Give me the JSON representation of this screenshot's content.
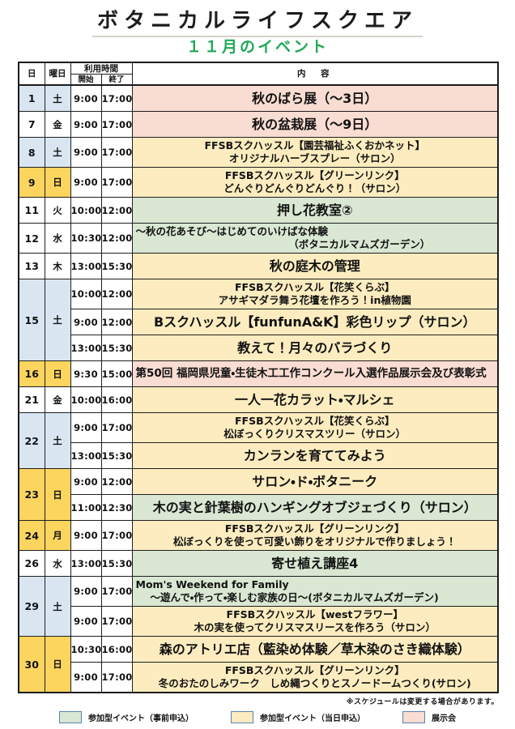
{
  "title": "ボタニカルライフスクエア",
  "subtitle": "１１月のイベント",
  "subtitle_color": "#21a857",
  "table": {
    "headers": {
      "day": "日",
      "weekday": "曜日",
      "time": "利用時間",
      "start": "開始",
      "end": "終了",
      "content": "内　容"
    },
    "rows": [
      {
        "day": "1",
        "weekday": "土",
        "day_type": "sat",
        "events": [
          {
            "start": "9:00",
            "end": "17:00",
            "category": "pink",
            "size": "lg",
            "layout": "center",
            "lines": [
              "秋のばら展（～3日）"
            ]
          }
        ]
      },
      {
        "day": "7",
        "weekday": "金",
        "day_type": "wk",
        "events": [
          {
            "start": "9:00",
            "end": "17:00",
            "category": "pink",
            "size": "lg",
            "layout": "center",
            "lines": [
              "秋の盆栽展（～9日）"
            ]
          }
        ]
      },
      {
        "day": "8",
        "weekday": "土",
        "day_type": "sat",
        "events": [
          {
            "start": "9:00",
            "end": "17:00",
            "category": "yellow",
            "size": "sm",
            "layout": "center",
            "lines": [
              "FFSBスクハッスル【園芸福祉ふくおかネット】",
              "オリジナルハーブスプレー（サロン）"
            ]
          }
        ]
      },
      {
        "day": "9",
        "weekday": "日",
        "day_type": "sun",
        "events": [
          {
            "start": "9:00",
            "end": "17:00",
            "category": "yellow",
            "size": "sm",
            "layout": "center",
            "lines": [
              "FFSBスクハッスル【グリーンリンク】",
              "どんぐりどんぐりどんぐり！（サロン）"
            ]
          }
        ]
      },
      {
        "day": "11",
        "weekday": "火",
        "day_type": "wk",
        "events": [
          {
            "start": "10:00",
            "end": "12:00",
            "category": "green",
            "size": "lg",
            "layout": "center",
            "lines": [
              "押し花教室②"
            ]
          }
        ]
      },
      {
        "day": "12",
        "weekday": "水",
        "day_type": "wk",
        "events": [
          {
            "start": "10:30",
            "end": "12:00",
            "category": "green",
            "size": "sm",
            "layout": "split",
            "lines": [
              "～秋の花あそび～はじめてのいけばな体験",
              "（ボタニカルマムズガーデン）"
            ]
          }
        ]
      },
      {
        "day": "13",
        "weekday": "木",
        "day_type": "wk",
        "events": [
          {
            "start": "13:00",
            "end": "15:30",
            "category": "yellow",
            "size": "lg",
            "layout": "center",
            "lines": [
              "秋の庭木の管理"
            ]
          }
        ]
      },
      {
        "day": "15",
        "weekday": "土",
        "day_type": "sat",
        "events": [
          {
            "start": "10:00",
            "end": "12:00",
            "category": "yellow",
            "size": "sm",
            "layout": "center",
            "lines": [
              "FFSBスクハッスル【花笑くらぶ】",
              "アサギマダラ舞う花壇を作ろう！in植物園"
            ]
          },
          {
            "start": "9:00",
            "end": "12:00",
            "category": "yellow",
            "size": "lg",
            "layout": "center",
            "lines": [
              "Bスクハッスル【funfunA&K】彩色リップ（サロン）"
            ]
          },
          {
            "start": "13:00",
            "end": "15:30",
            "category": "yellow",
            "size": "lg",
            "layout": "center",
            "lines": [
              "教えて！月々のバラづくり"
            ]
          }
        ]
      },
      {
        "day": "16",
        "weekday": "日",
        "day_type": "sun",
        "events": [
          {
            "start": "9:30",
            "end": "15:00",
            "category": "pink",
            "size": "md",
            "layout": "left",
            "lines": [
              "第50回 福岡県児童・生徒木工工作コンクール入選作品展示会及び表彰式"
            ]
          }
        ]
      },
      {
        "day": "21",
        "weekday": "金",
        "day_type": "wk",
        "events": [
          {
            "start": "10:00",
            "end": "16:00",
            "category": "yellow",
            "size": "lg",
            "layout": "center",
            "lines": [
              "一人一花カラット・マルシェ"
            ]
          }
        ]
      },
      {
        "day": "22",
        "weekday": "土",
        "day_type": "sat",
        "events": [
          {
            "start": "9:00",
            "end": "17:00",
            "category": "yellow",
            "size": "sm",
            "layout": "center",
            "lines": [
              "FFSBスクハッスル【花笑くらぶ】",
              "松ぼっくりクリスマスツリー（サロン）"
            ]
          },
          {
            "start": "13:00",
            "end": "15:30",
            "category": "yellow",
            "size": "lg",
            "layout": "center",
            "lines": [
              "カンランを育ててみよう"
            ]
          }
        ]
      },
      {
        "day": "23",
        "weekday": "日",
        "day_type": "sun",
        "events": [
          {
            "start": "9:00",
            "end": "12:00",
            "category": "yellow",
            "size": "lg",
            "layout": "center",
            "lines": [
              "サロン・ド・ボタニーク"
            ]
          },
          {
            "start": "11:00",
            "end": "12:30",
            "category": "green",
            "size": "lg",
            "layout": "center",
            "lines": [
              "木の実と針葉樹のハンギングオブジェづくり（サロン）"
            ]
          }
        ]
      },
      {
        "day": "24",
        "weekday": "月",
        "day_type": "sun",
        "events": [
          {
            "start": "9:00",
            "end": "17:00",
            "category": "yellow",
            "size": "sm",
            "layout": "center",
            "lines": [
              "FFSBスクハッスル【グリーンリンク】",
              "松ぼっくりを使って可愛い飾りをオリジナルで作りましょう！"
            ]
          }
        ]
      },
      {
        "day": "26",
        "weekday": "水",
        "day_type": "wk",
        "events": [
          {
            "start": "13:00",
            "end": "15:30",
            "category": "green",
            "size": "lg",
            "layout": "center",
            "lines": [
              "寄せ植え講座4"
            ]
          }
        ]
      },
      {
        "day": "29",
        "weekday": "土",
        "day_type": "sat",
        "events": [
          {
            "start": "9:00",
            "end": "17:00",
            "category": "green",
            "size": "sm",
            "layout": "leftindent",
            "lines": [
              "Mom's Weekend for Family",
              "～遊んで・作って・楽しむ家族の日～(ボタニカルマムズガーデン)"
            ]
          },
          {
            "start": "9:00",
            "end": "17:00",
            "category": "yellow",
            "size": "sm",
            "layout": "center",
            "lines": [
              "FFSBスクハッスル【westフラワー】",
              "木の実を使ってクリスマスリースを作ろう（サロン）"
            ]
          }
        ]
      },
      {
        "day": "30",
        "weekday": "日",
        "day_type": "sun",
        "events": [
          {
            "start": "10:30",
            "end": "16:00",
            "category": "yellow",
            "size": "lg",
            "layout": "center",
            "lines": [
              "森のアトリエ店（藍染め体験／草木染のさき織体験）"
            ]
          },
          {
            "start": "9:00",
            "end": "17:00",
            "category": "yellow",
            "size": "sm",
            "layout": "center",
            "lines": [
              "FFSBスクハッスル【グリーンリンク】",
              "冬のおたのしみワーク　しめ縄つくりとスノードームつくり(サロン)"
            ]
          }
        ]
      }
    ]
  },
  "note": "※スケジュールは変更する場合があります。",
  "legend": [
    {
      "label": "参加型イベント（事前申込）",
      "color": "#d9e7d3"
    },
    {
      "label": "参加型イベント（当日申込）",
      "color": "#fcecbf"
    },
    {
      "label": "展示会",
      "color": "#f9dcd2"
    }
  ],
  "colors": {
    "category_pink": "#f9dcd2",
    "category_yellow": "#fcecbf",
    "category_green": "#d9e7d3",
    "saturday_cell": "#d9e6f2",
    "sunday_holiday_cell": "#fcd55f",
    "subtitle_green": "#21a857",
    "legend_swatch_border": "#5b82b5"
  }
}
